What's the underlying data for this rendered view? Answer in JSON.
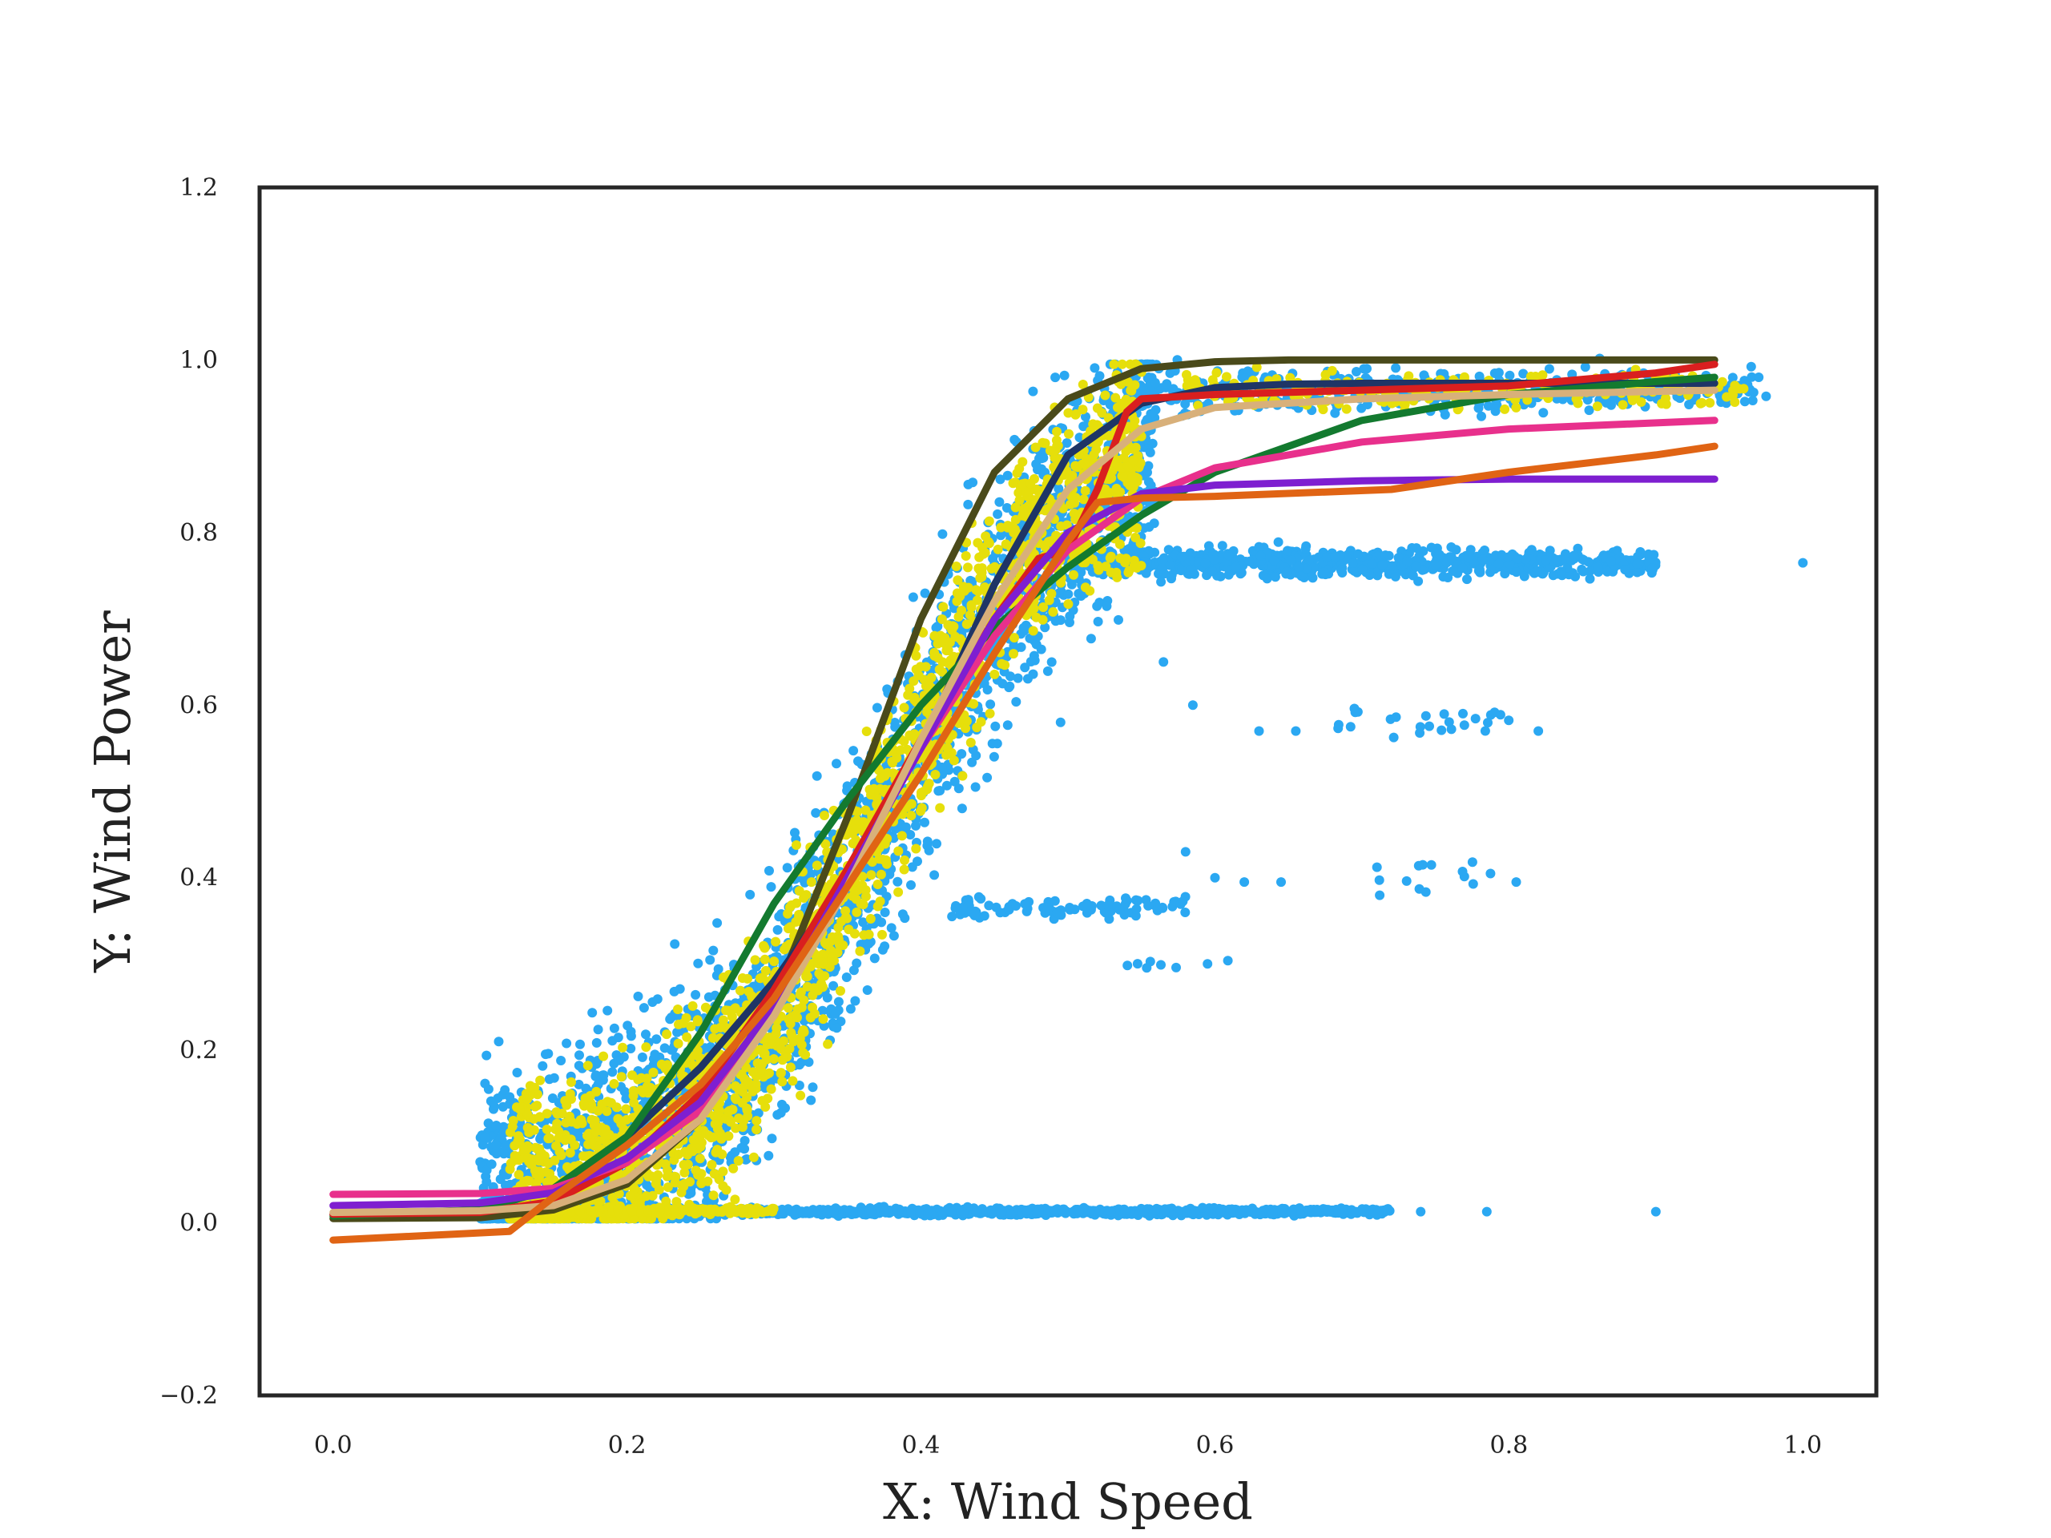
{
  "chart_data": {
    "type": "scatter",
    "title": "",
    "xlabel": "X: Wind Speed",
    "ylabel": "Y: Wind Power",
    "xlim": [
      -0.05,
      1.05
    ],
    "ylim": [
      -0.2,
      1.2
    ],
    "x_ticks": [
      "0.0",
      "0.2",
      "0.4",
      "0.6",
      "0.8",
      "1.0"
    ],
    "x_tick_values": [
      0.0,
      0.2,
      0.4,
      0.6,
      0.8,
      1.0
    ],
    "y_ticks": [
      "−0.2",
      "0.0",
      "0.2",
      "0.4",
      "0.6",
      "0.8",
      "1.0",
      "1.2"
    ],
    "y_tick_values": [
      -0.2,
      0.0,
      0.2,
      0.4,
      0.6,
      0.8,
      1.0,
      1.2
    ],
    "grid": false,
    "legend": "none",
    "scatter_series": [
      {
        "color": "#2ba8f2",
        "clusters": [
          {
            "kind": "sigmoid",
            "x_range": [
              0.1,
              0.56
            ],
            "mid": 0.385,
            "k": 14,
            "spread": 0.07,
            "count": 2600
          },
          {
            "kind": "band",
            "x_range": [
              0.5,
              0.9
            ],
            "y": 0.765,
            "spread": 0.008,
            "count": 700
          },
          {
            "kind": "band",
            "x_range": [
              0.55,
              0.97
            ],
            "y": 0.965,
            "spread": 0.012,
            "count": 420
          },
          {
            "kind": "band",
            "x_range": [
              0.14,
              0.72
            ],
            "y": 0.013,
            "spread": 0.002,
            "count": 1100
          },
          {
            "kind": "band",
            "x_range": [
              0.42,
              0.58
            ],
            "y": 0.365,
            "spread": 0.006,
            "count": 90
          },
          {
            "kind": "band",
            "x_range": [
              0.68,
              0.8
            ],
            "y": 0.585,
            "spread": 0.012,
            "count": 26
          },
          {
            "kind": "band",
            "x_range": [
              0.69,
              0.79
            ],
            "y": 0.405,
            "spread": 0.01,
            "count": 14
          },
          {
            "kind": "band",
            "x_range": [
              0.54,
              0.62
            ],
            "y": 0.305,
            "spread": 0.006,
            "count": 8
          }
        ],
        "extra_points": [
          [
            0.74,
            0.013
          ],
          [
            0.785,
            0.013
          ],
          [
            0.9,
            0.013
          ],
          [
            1.0,
            0.765
          ],
          [
            0.97,
            0.98
          ],
          [
            0.975,
            0.958
          ],
          [
            0.63,
            0.57
          ],
          [
            0.655,
            0.57
          ],
          [
            0.565,
            0.65
          ],
          [
            0.585,
            0.6
          ],
          [
            0.495,
            0.58
          ],
          [
            0.6,
            0.4
          ],
          [
            0.58,
            0.43
          ],
          [
            0.62,
            0.395
          ],
          [
            0.645,
            0.395
          ],
          [
            0.805,
            0.395
          ],
          [
            0.82,
            0.57
          ]
        ]
      },
      {
        "color": "#e6df0b",
        "clusters": [
          {
            "kind": "sigmoid",
            "x_range": [
              0.12,
              0.55
            ],
            "mid": 0.38,
            "k": 14.5,
            "spread": 0.055,
            "count": 1900
          },
          {
            "kind": "band",
            "x_range": [
              0.58,
              0.96
            ],
            "y": 0.965,
            "spread": 0.01,
            "count": 220
          },
          {
            "kind": "band",
            "x_range": [
              0.12,
              0.3
            ],
            "y": 0.014,
            "spread": 0.002,
            "count": 260
          },
          {
            "kind": "band",
            "x_range": [
              0.5,
              0.55
            ],
            "y": 0.77,
            "spread": 0.01,
            "count": 30
          }
        ],
        "extra_points": []
      }
    ],
    "line_series": [
      {
        "color": "#4a4a1a",
        "x": [
          0.0,
          0.1,
          0.15,
          0.2,
          0.25,
          0.3,
          0.35,
          0.4,
          0.45,
          0.5,
          0.55,
          0.6,
          0.65,
          0.7,
          0.8,
          0.94
        ],
        "y": [
          0.005,
          0.006,
          0.015,
          0.045,
          0.12,
          0.26,
          0.47,
          0.7,
          0.87,
          0.955,
          0.99,
          0.998,
          1.0,
          1.0,
          1.0,
          1.0
        ]
      },
      {
        "color": "#1f3566",
        "x": [
          0.0,
          0.1,
          0.15,
          0.2,
          0.25,
          0.3,
          0.35,
          0.4,
          0.45,
          0.5,
          0.55,
          0.6,
          0.65,
          0.7,
          0.8,
          0.94
        ],
        "y": [
          0.01,
          0.015,
          0.04,
          0.1,
          0.18,
          0.28,
          0.4,
          0.55,
          0.74,
          0.89,
          0.95,
          0.968,
          0.972,
          0.973,
          0.973,
          0.973
        ]
      },
      {
        "color": "#137a2f",
        "x": [
          0.0,
          0.1,
          0.15,
          0.2,
          0.25,
          0.3,
          0.35,
          0.4,
          0.45,
          0.5,
          0.55,
          0.6,
          0.7,
          0.8,
          0.9,
          0.94
        ],
        "y": [
          0.008,
          0.015,
          0.04,
          0.1,
          0.22,
          0.37,
          0.49,
          0.6,
          0.69,
          0.76,
          0.82,
          0.87,
          0.93,
          0.96,
          0.975,
          0.98
        ]
      },
      {
        "color": "#d91f1f",
        "x": [
          0.0,
          0.1,
          0.15,
          0.2,
          0.25,
          0.3,
          0.35,
          0.4,
          0.45,
          0.48,
          0.5,
          0.52,
          0.54,
          0.55,
          0.6,
          0.7,
          0.8,
          0.9,
          0.94
        ],
        "y": [
          0.01,
          0.012,
          0.025,
          0.07,
          0.15,
          0.27,
          0.41,
          0.56,
          0.7,
          0.77,
          0.78,
          0.85,
          0.94,
          0.955,
          0.96,
          0.965,
          0.97,
          0.985,
          0.995
        ]
      },
      {
        "color": "#e8308c",
        "x": [
          0.0,
          0.1,
          0.15,
          0.2,
          0.25,
          0.3,
          0.35,
          0.4,
          0.45,
          0.5,
          0.55,
          0.6,
          0.7,
          0.8,
          0.94
        ],
        "y": [
          0.033,
          0.034,
          0.04,
          0.07,
          0.13,
          0.24,
          0.4,
          0.55,
          0.68,
          0.78,
          0.84,
          0.875,
          0.905,
          0.92,
          0.93
        ]
      },
      {
        "color": "#7e1fd0",
        "x": [
          0.0,
          0.1,
          0.15,
          0.2,
          0.25,
          0.3,
          0.35,
          0.4,
          0.45,
          0.5,
          0.55,
          0.6,
          0.7,
          0.8,
          0.94
        ],
        "y": [
          0.02,
          0.023,
          0.035,
          0.075,
          0.14,
          0.25,
          0.4,
          0.55,
          0.7,
          0.8,
          0.845,
          0.855,
          0.86,
          0.862,
          0.862
        ]
      },
      {
        "color": "#d8b07a",
        "x": [
          0.0,
          0.1,
          0.15,
          0.2,
          0.25,
          0.3,
          0.35,
          0.4,
          0.45,
          0.5,
          0.55,
          0.6,
          0.7,
          0.8,
          0.94
        ],
        "y": [
          0.012,
          0.014,
          0.02,
          0.05,
          0.12,
          0.24,
          0.39,
          0.56,
          0.72,
          0.85,
          0.92,
          0.945,
          0.955,
          0.96,
          0.965
        ]
      },
      {
        "color": "#e06414",
        "x": [
          0.0,
          0.12,
          0.15,
          0.2,
          0.25,
          0.3,
          0.35,
          0.4,
          0.45,
          0.5,
          0.52,
          0.55,
          0.6,
          0.72,
          0.8,
          0.9,
          0.94
        ],
        "y": [
          -0.02,
          -0.01,
          0.03,
          0.09,
          0.16,
          0.26,
          0.39,
          0.52,
          0.66,
          0.79,
          0.835,
          0.84,
          0.842,
          0.85,
          0.87,
          0.89,
          0.9
        ]
      }
    ]
  }
}
